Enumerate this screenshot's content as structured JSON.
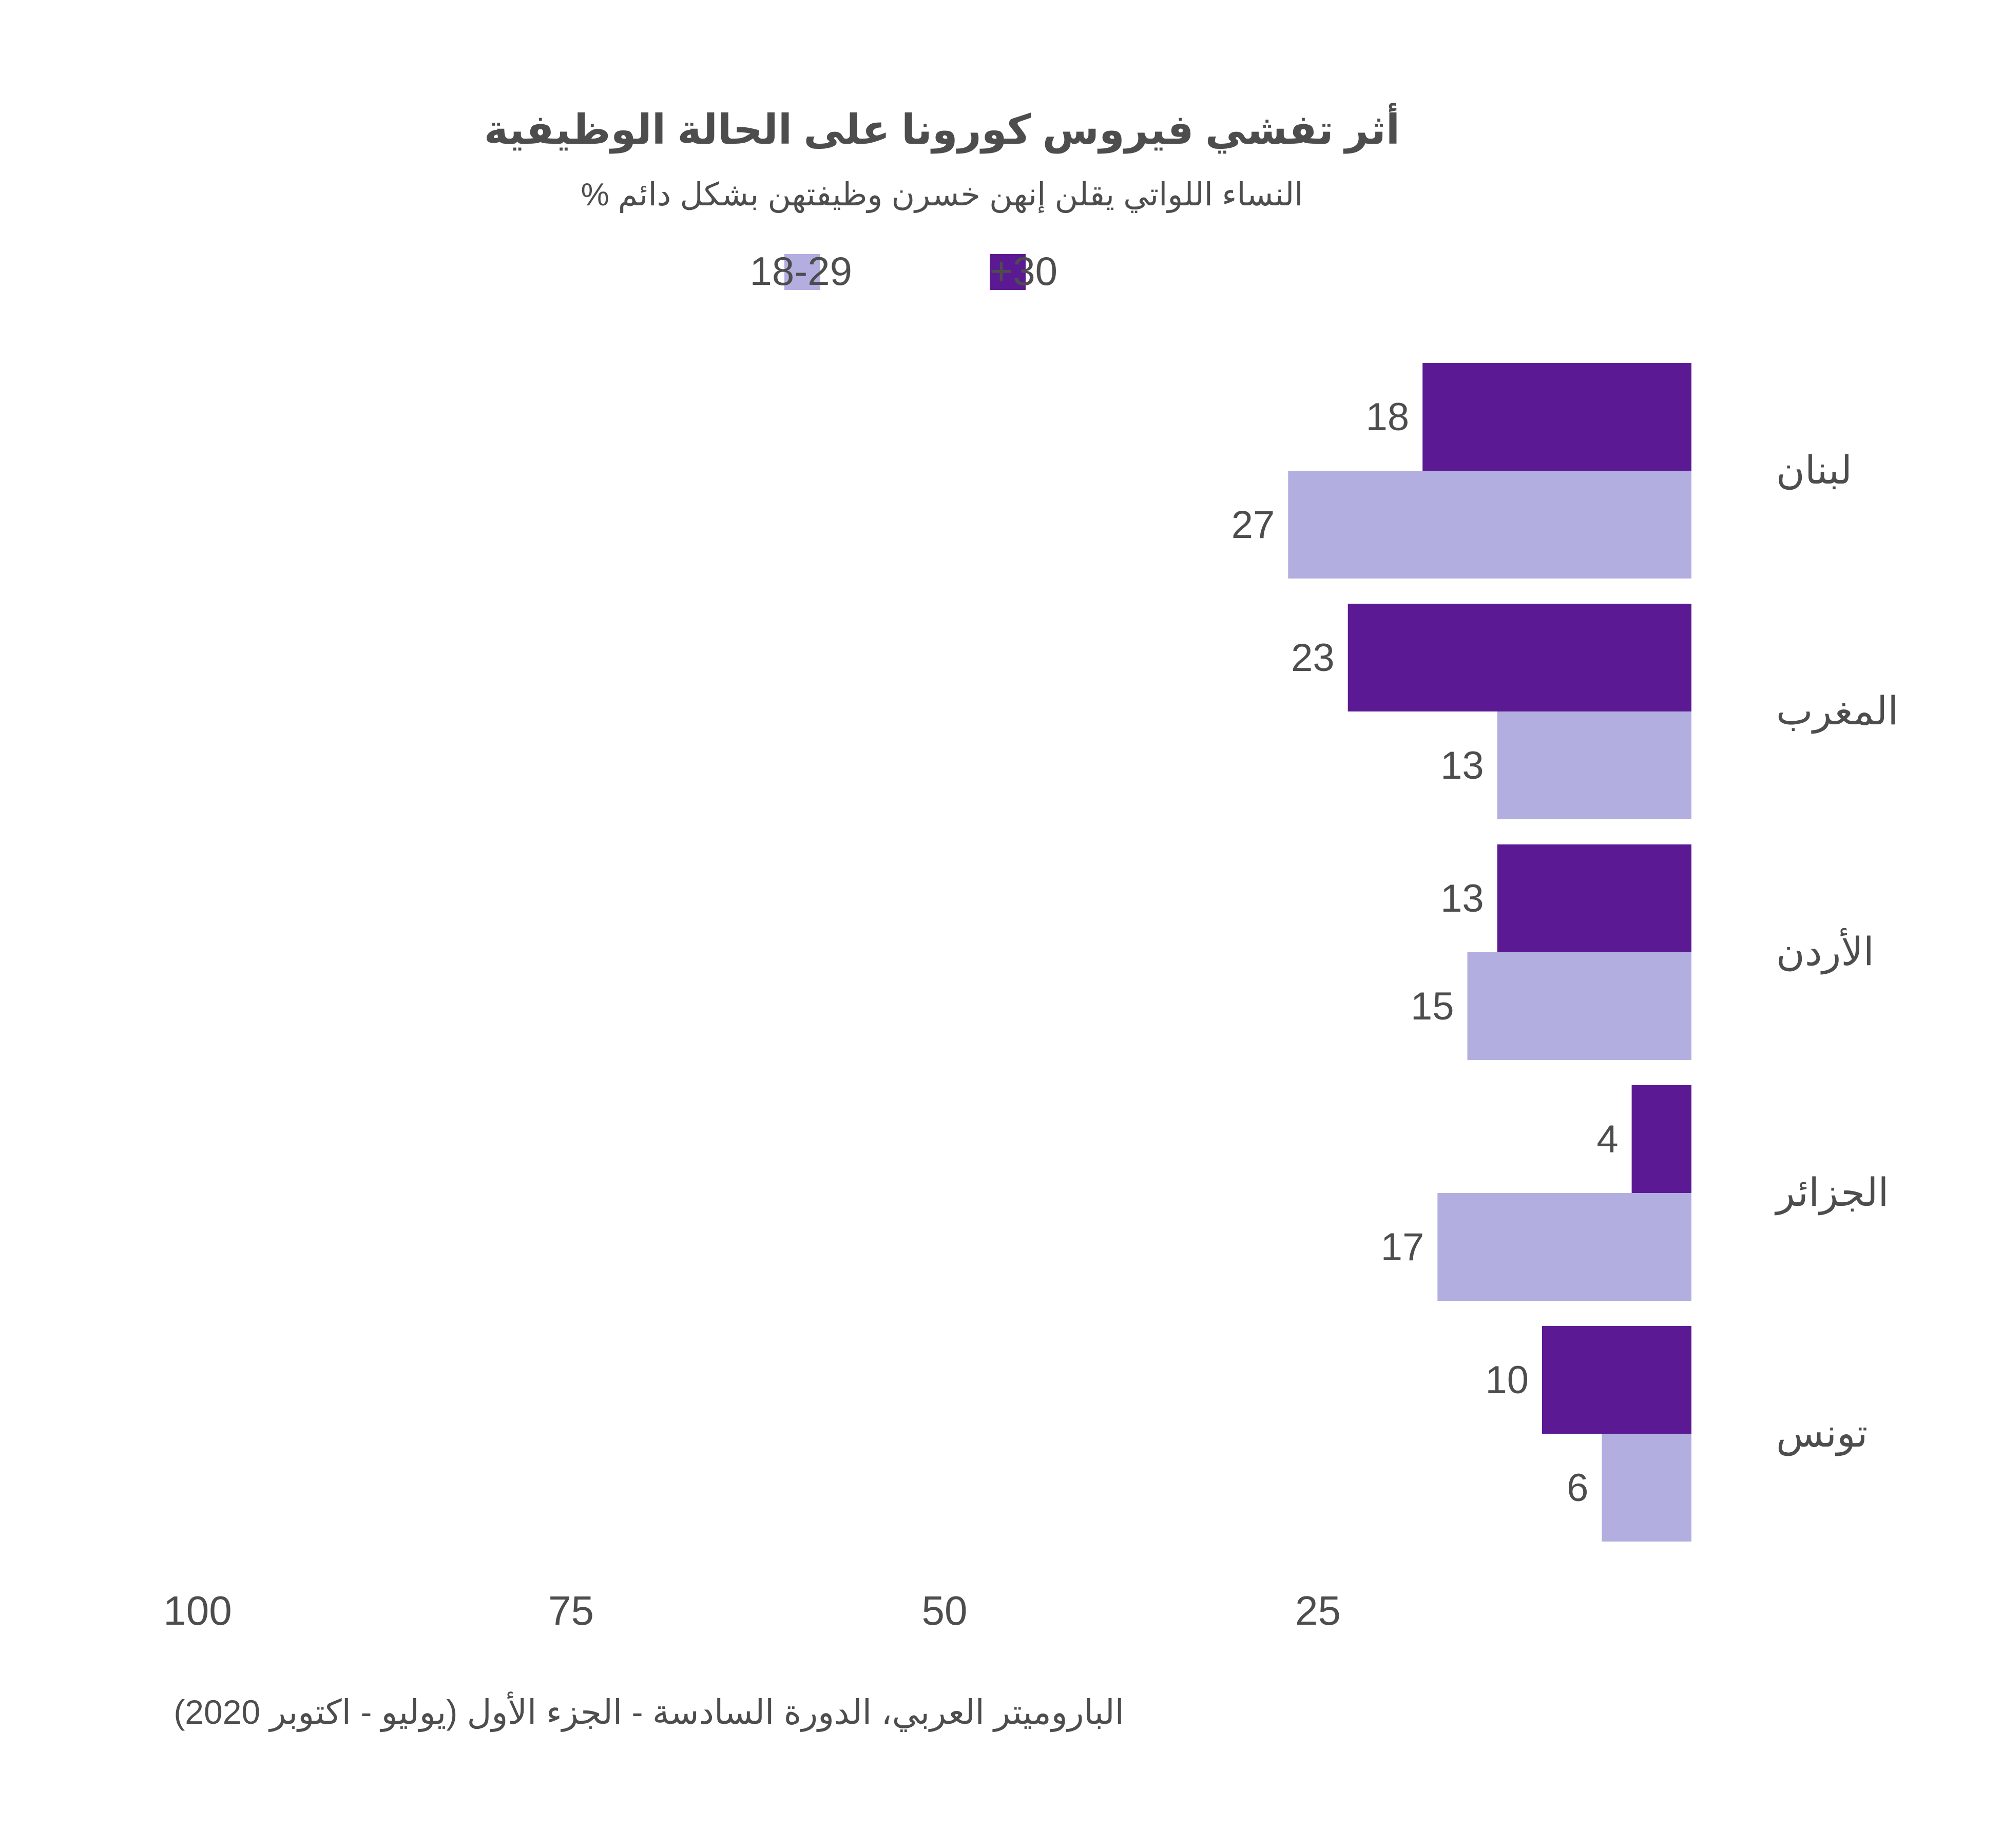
{
  "chart_data": {
    "type": "bar",
    "orientation": "horizontal",
    "direction": "right-to-left",
    "title": "أثر تفشي فيروس كورونا على الحالة الوظيفية",
    "subtitle": "% النساء اللواتي يقلن إنهن خسرن وظيفتهن بشكل دائم",
    "caption": "الباروميتر العربي، الدورة السادسة - الجزء الأول (يوليو - اكتوبر 2020)",
    "categories": [
      "لبنان",
      "المغرب",
      "الأردن",
      "الجزائر",
      "تونس"
    ],
    "series": [
      {
        "name": "+30",
        "color": "#5b1a93",
        "values": [
          18,
          23,
          13,
          4,
          10
        ]
      },
      {
        "name": "18-29",
        "color": "#b3aee0",
        "values": [
          27,
          13,
          15,
          17,
          6
        ]
      }
    ],
    "xlim": [
      0,
      100
    ],
    "x_ticks": [
      100,
      75,
      50,
      25
    ],
    "legend_position": "top",
    "grid": false
  }
}
